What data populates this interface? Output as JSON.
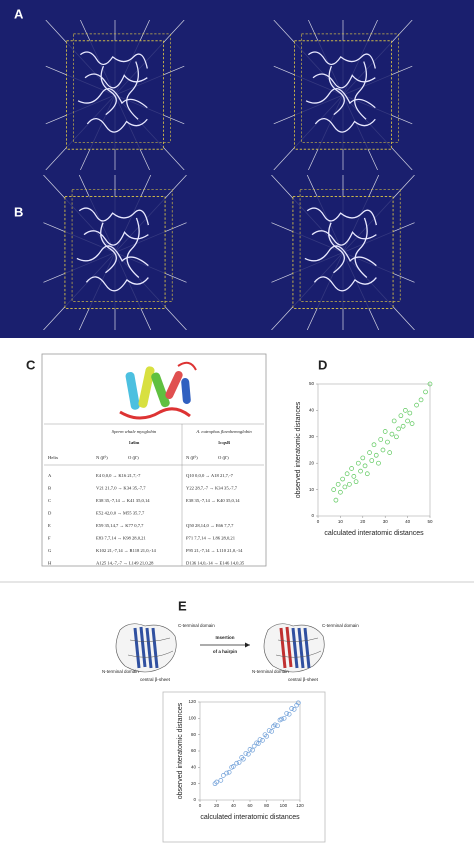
{
  "panels": {
    "a": "A",
    "b": "B",
    "c": "C",
    "d": "D",
    "e": "E"
  },
  "table": {
    "helix_header": "Helix",
    "subheaders": [
      "N (β⁰)",
      "O (β')"
    ],
    "columns": [
      {
        "title": "Sperm whale myoglobin",
        "pdb": "1a6m"
      },
      {
        "title": "A. eutrophus flavohemoglobin",
        "pdb": "1cqxB"
      }
    ],
    "rows": [
      [
        "A",
        "E4 0,0,0 → K16 21,7,-7",
        "Q10 0,0,0 → A18 21,7,-7"
      ],
      [
        "B",
        "V21 21,7,0 → K34 35,-7,7",
        "Y22 28,7,-7 → K34 35,-7,7"
      ],
      [
        "C",
        "E38 35,-7,14 → K41 35,0,14",
        "E38 35,-7,14 → K40 35,0,14"
      ],
      [
        "D",
        "E52 42,0,0 → M55 35,7,7",
        null
      ],
      [
        "E",
        "E59 35,14,7 → K77 0,7,7",
        "Q50 28,14,0 → E66 7,7,7"
      ],
      [
        "F",
        "E83 7,7,14 → K98 28,0,21",
        "P71 7,7,14 → L86 28,0,21"
      ],
      [
        "G",
        "K102 21,-7,14 → R118 21,0,-14",
        "F95 21,-7,14 → L110 21,0,-14"
      ],
      [
        "H",
        "A125 14,-7,-7 → L149 21,0,28",
        "D136 14,0,-14 → E146 14,0,35"
      ]
    ]
  },
  "diagram": {
    "c_domain": "C-terminal domain",
    "n_domain": "N-terminal domain",
    "sheet": "central β-sheet",
    "arrow_line1": "Insertion",
    "arrow_line2": "of a hairpin"
  },
  "chart_data": [
    {
      "type": "scatter",
      "xlabel": "calculated interatomic distances",
      "ylabel": "observed interatomic distances",
      "xlim": [
        0,
        50
      ],
      "ylim": [
        0,
        50
      ],
      "xticks": [
        0,
        10,
        20,
        30,
        40,
        50
      ],
      "yticks": [
        0,
        10,
        20,
        30,
        40,
        50
      ],
      "series": [
        {
          "color": "#5cc85c",
          "x": [
            7,
            8,
            9,
            10,
            11,
            12,
            13,
            14,
            15,
            16,
            17,
            18,
            19,
            20,
            21,
            22,
            23,
            24,
            25,
            26,
            27,
            28,
            29,
            30,
            31,
            32,
            33,
            34,
            35,
            36,
            37,
            38,
            39,
            40,
            41,
            42,
            44,
            46,
            48,
            50
          ],
          "values": [
            10,
            6,
            12,
            9,
            14,
            11,
            16,
            12,
            18,
            15,
            13,
            20,
            17,
            22,
            19,
            16,
            24,
            21,
            27,
            23,
            20,
            29,
            25,
            32,
            28,
            24,
            31,
            36,
            30,
            33,
            38,
            34,
            40,
            36,
            39,
            35,
            42,
            44,
            47,
            50
          ]
        }
      ]
    },
    {
      "type": "scatter",
      "xlabel": "calculated interatomic distances",
      "ylabel": "observed interatomic distances",
      "xlim": [
        0,
        120
      ],
      "ylim": [
        0,
        120
      ],
      "xticks": [
        0,
        20,
        40,
        60,
        80,
        100,
        120
      ],
      "yticks": [
        0,
        20,
        40,
        60,
        80,
        100,
        120
      ],
      "series": [
        {
          "color": "#6f9fd8",
          "x": [
            18,
            20,
            25,
            28,
            32,
            35,
            38,
            40,
            44,
            47,
            50,
            52,
            55,
            58,
            60,
            63,
            65,
            68,
            70,
            72,
            75,
            78,
            80,
            83,
            86,
            88,
            90,
            93,
            96,
            98,
            101,
            104,
            107,
            110,
            113,
            116,
            118
          ],
          "values": [
            20,
            22,
            24,
            30,
            33,
            34,
            40,
            41,
            45,
            46,
            52,
            50,
            57,
            56,
            62,
            61,
            66,
            70,
            69,
            74,
            73,
            80,
            78,
            85,
            84,
            90,
            92,
            91,
            98,
            99,
            100,
            106,
            105,
            112,
            111,
            116,
            119
          ]
        }
      ]
    }
  ]
}
